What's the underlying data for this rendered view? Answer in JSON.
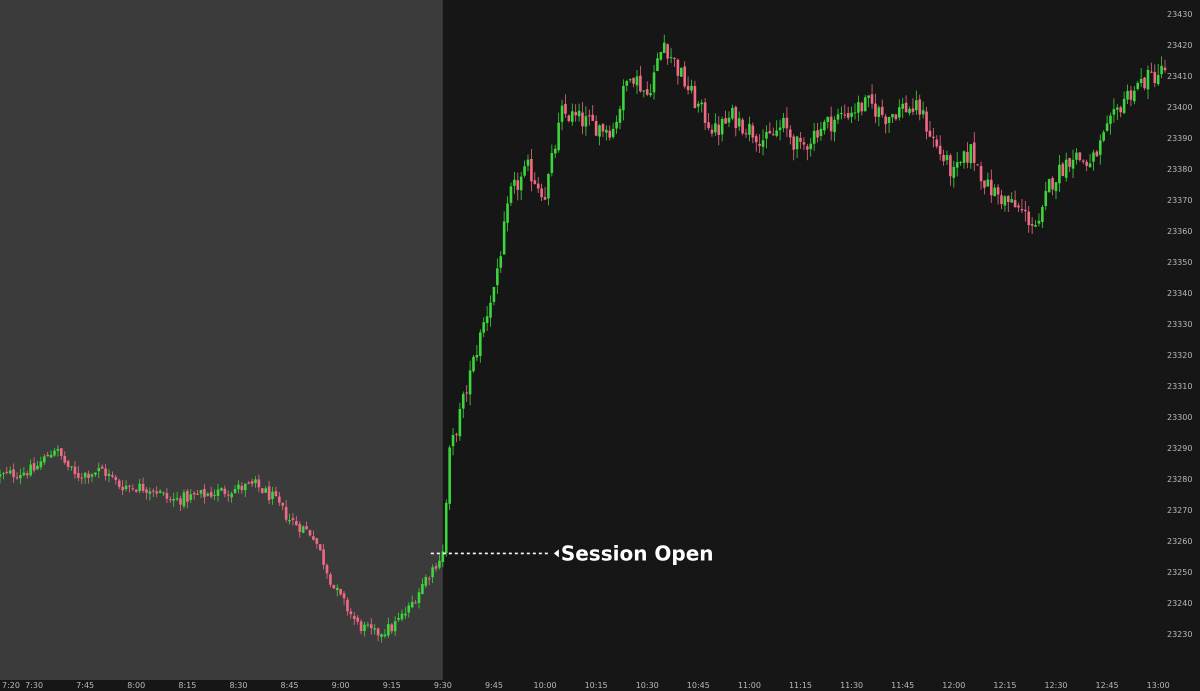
{
  "chart_data": {
    "type": "candlestick",
    "title": "",
    "xlabel": "",
    "ylabel": "",
    "ylim": [
      23220,
      23432
    ],
    "x_range": [
      "7:20",
      "13:02"
    ],
    "grid": false,
    "colors": {
      "background": "#161616",
      "premarket_background": "#3b3b3b",
      "up": "#3cd63c",
      "down": "#f06a86",
      "axis_text": "#b8b8b8",
      "annotation": "#ffffff"
    },
    "x_ticks": [
      "7:20",
      "7:30",
      "7:45",
      "8:00",
      "8:15",
      "8:30",
      "8:45",
      "9:00",
      "9:15",
      "9:30",
      "9:45",
      "10:00",
      "10:15",
      "10:30",
      "10:45",
      "11:00",
      "11:15",
      "11:30",
      "11:45",
      "12:00",
      "12:15",
      "12:30",
      "12:45",
      "13:00"
    ],
    "y_ticks": [
      23230,
      23240,
      23250,
      23260,
      23270,
      23280,
      23290,
      23300,
      23310,
      23320,
      23330,
      23340,
      23350,
      23360,
      23370,
      23380,
      23390,
      23400,
      23410,
      23420,
      23430
    ],
    "premarket_shading": {
      "start": "7:20",
      "end": "9:30"
    },
    "annotation": {
      "text": "Session Open",
      "time": "9:30",
      "price": 23256
    },
    "close_path": [
      [
        "7:20",
        23281
      ],
      [
        "7:30",
        23283
      ],
      [
        "7:36",
        23290
      ],
      [
        "7:42",
        23281
      ],
      [
        "7:50",
        23283
      ],
      [
        "7:55",
        23278
      ],
      [
        "8:05",
        23277
      ],
      [
        "8:10",
        23273
      ],
      [
        "8:20",
        23275
      ],
      [
        "8:25",
        23276
      ],
      [
        "8:35",
        23278
      ],
      [
        "8:40",
        23274
      ],
      [
        "8:45",
        23267
      ],
      [
        "8:52",
        23262
      ],
      [
        "8:58",
        23245
      ],
      [
        "9:05",
        23233
      ],
      [
        "9:10",
        23230
      ],
      [
        "9:15",
        23232
      ],
      [
        "9:20",
        23238
      ],
      [
        "9:25",
        23248
      ],
      [
        "9:30",
        23256
      ],
      [
        "9:32",
        23288
      ],
      [
        "9:36",
        23305
      ],
      [
        "9:40",
        23322
      ],
      [
        "9:45",
        23342
      ],
      [
        "9:50",
        23372
      ],
      [
        "9:55",
        23380
      ],
      [
        "10:00",
        23372
      ],
      [
        "10:05",
        23398
      ],
      [
        "10:10",
        23396
      ],
      [
        "10:15",
        23394
      ],
      [
        "10:20",
        23393
      ],
      [
        "10:25",
        23412
      ],
      [
        "10:30",
        23404
      ],
      [
        "10:35",
        23421
      ],
      [
        "10:40",
        23410
      ],
      [
        "10:45",
        23400
      ],
      [
        "10:50",
        23392
      ],
      [
        "10:55",
        23397
      ],
      [
        "11:00",
        23393
      ],
      [
        "11:05",
        23389
      ],
      [
        "11:10",
        23394
      ],
      [
        "11:15",
        23386
      ],
      [
        "11:20",
        23393
      ],
      [
        "11:25",
        23396
      ],
      [
        "11:30",
        23399
      ],
      [
        "11:35",
        23401
      ],
      [
        "11:40",
        23397
      ],
      [
        "11:45",
        23400
      ],
      [
        "11:50",
        23399
      ],
      [
        "11:55",
        23387
      ],
      [
        "12:00",
        23378
      ],
      [
        "12:05",
        23386
      ],
      [
        "12:10",
        23374
      ],
      [
        "12:15",
        23370
      ],
      [
        "12:20",
        23366
      ],
      [
        "12:25",
        23361
      ],
      [
        "12:28",
        23375
      ],
      [
        "12:35",
        23385
      ],
      [
        "12:40",
        23381
      ],
      [
        "12:45",
        23392
      ],
      [
        "12:50",
        23403
      ],
      [
        "12:55",
        23408
      ],
      [
        "13:02",
        23412
      ]
    ]
  }
}
